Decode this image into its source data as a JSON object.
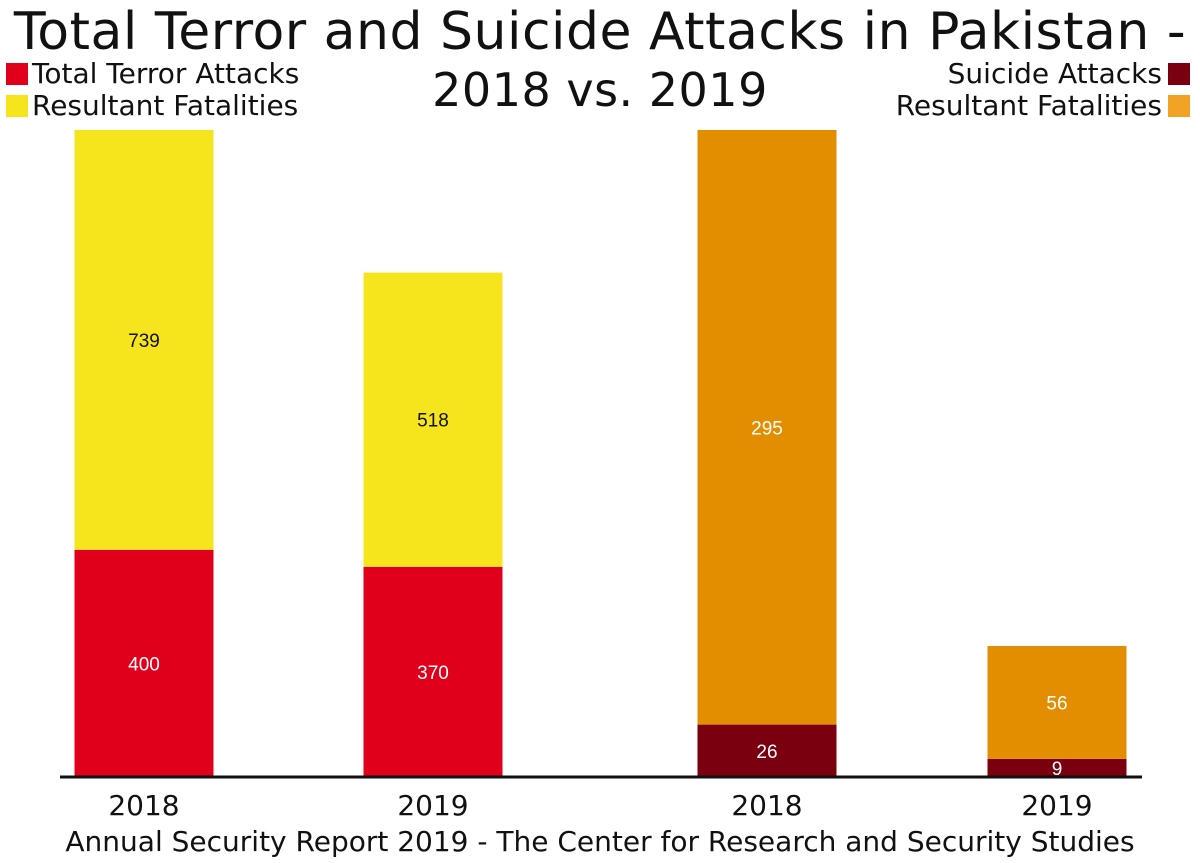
{
  "title_line1": "Total Terror and Suicide Attacks in Pakistan -",
  "title_line2": "2018 vs. 2019",
  "legend_left": [
    {
      "label": "Total Terror Attacks",
      "color": "#e0001b"
    },
    {
      "label": "Resultant Fatalities",
      "color": "#f6e51d"
    }
  ],
  "legend_right": [
    {
      "label": "Suicide Attacks",
      "color": "#7a0010"
    },
    {
      "label": "Resultant Fatalities",
      "color": "#f2a323"
    }
  ],
  "footer": "Annual Security Report 2019 - The Center for Research and Security Studies",
  "chart_data": {
    "type": "bar",
    "stacked": true,
    "categories": [
      "2018",
      "2019",
      "2018",
      "2019"
    ],
    "groups": [
      {
        "categories": [
          "2018",
          "2019"
        ],
        "series": [
          {
            "name": "Total Terror Attacks",
            "values": [
              400,
              370
            ],
            "color": "#e0001b",
            "label_color": "#ffffff"
          },
          {
            "name": "Resultant Fatalities",
            "values": [
              739,
              518
            ],
            "color": "#f6e51d",
            "label_color": "#111111"
          }
        ]
      },
      {
        "categories": [
          "2018",
          "2019"
        ],
        "series": [
          {
            "name": "Suicide Attacks",
            "values": [
              26,
              9
            ],
            "color": "#7a0010",
            "label_color": "#ffffff"
          },
          {
            "name": "Resultant Fatalities",
            "values": [
              295,
              56
            ],
            "color": "#e28e00",
            "label_color": "#ffffff"
          }
        ]
      }
    ],
    "title": "Total Terror and Suicide Attacks in Pakistan - 2018 vs. 2019",
    "xlabel": "",
    "ylabel": ""
  }
}
